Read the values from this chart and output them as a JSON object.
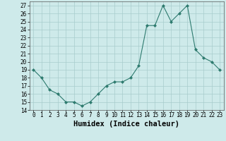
{
  "x": [
    0,
    1,
    2,
    3,
    4,
    5,
    6,
    7,
    8,
    9,
    10,
    11,
    12,
    13,
    14,
    15,
    16,
    17,
    18,
    19,
    20,
    21,
    22,
    23
  ],
  "y": [
    19,
    18,
    16.5,
    16,
    15,
    15,
    14.5,
    15,
    16,
    17,
    17.5,
    17.5,
    18,
    19.5,
    24.5,
    24.5,
    27,
    25,
    26,
    27,
    21.5,
    20.5,
    20,
    19
  ],
  "xlabel": "Humidex (Indice chaleur)",
  "xlim": [
    -0.5,
    23.5
  ],
  "ylim": [
    14,
    27.5
  ],
  "yticks": [
    14,
    15,
    16,
    17,
    18,
    19,
    20,
    21,
    22,
    23,
    24,
    25,
    26,
    27
  ],
  "xticks": [
    0,
    1,
    2,
    3,
    4,
    5,
    6,
    7,
    8,
    9,
    10,
    11,
    12,
    13,
    14,
    15,
    16,
    17,
    18,
    19,
    20,
    21,
    22,
    23
  ],
  "line_color": "#2d7a6e",
  "bg_color": "#ceeaea",
  "grid_color": "#a8cccc",
  "tick_fontsize": 5.5,
  "label_fontsize": 7.5
}
